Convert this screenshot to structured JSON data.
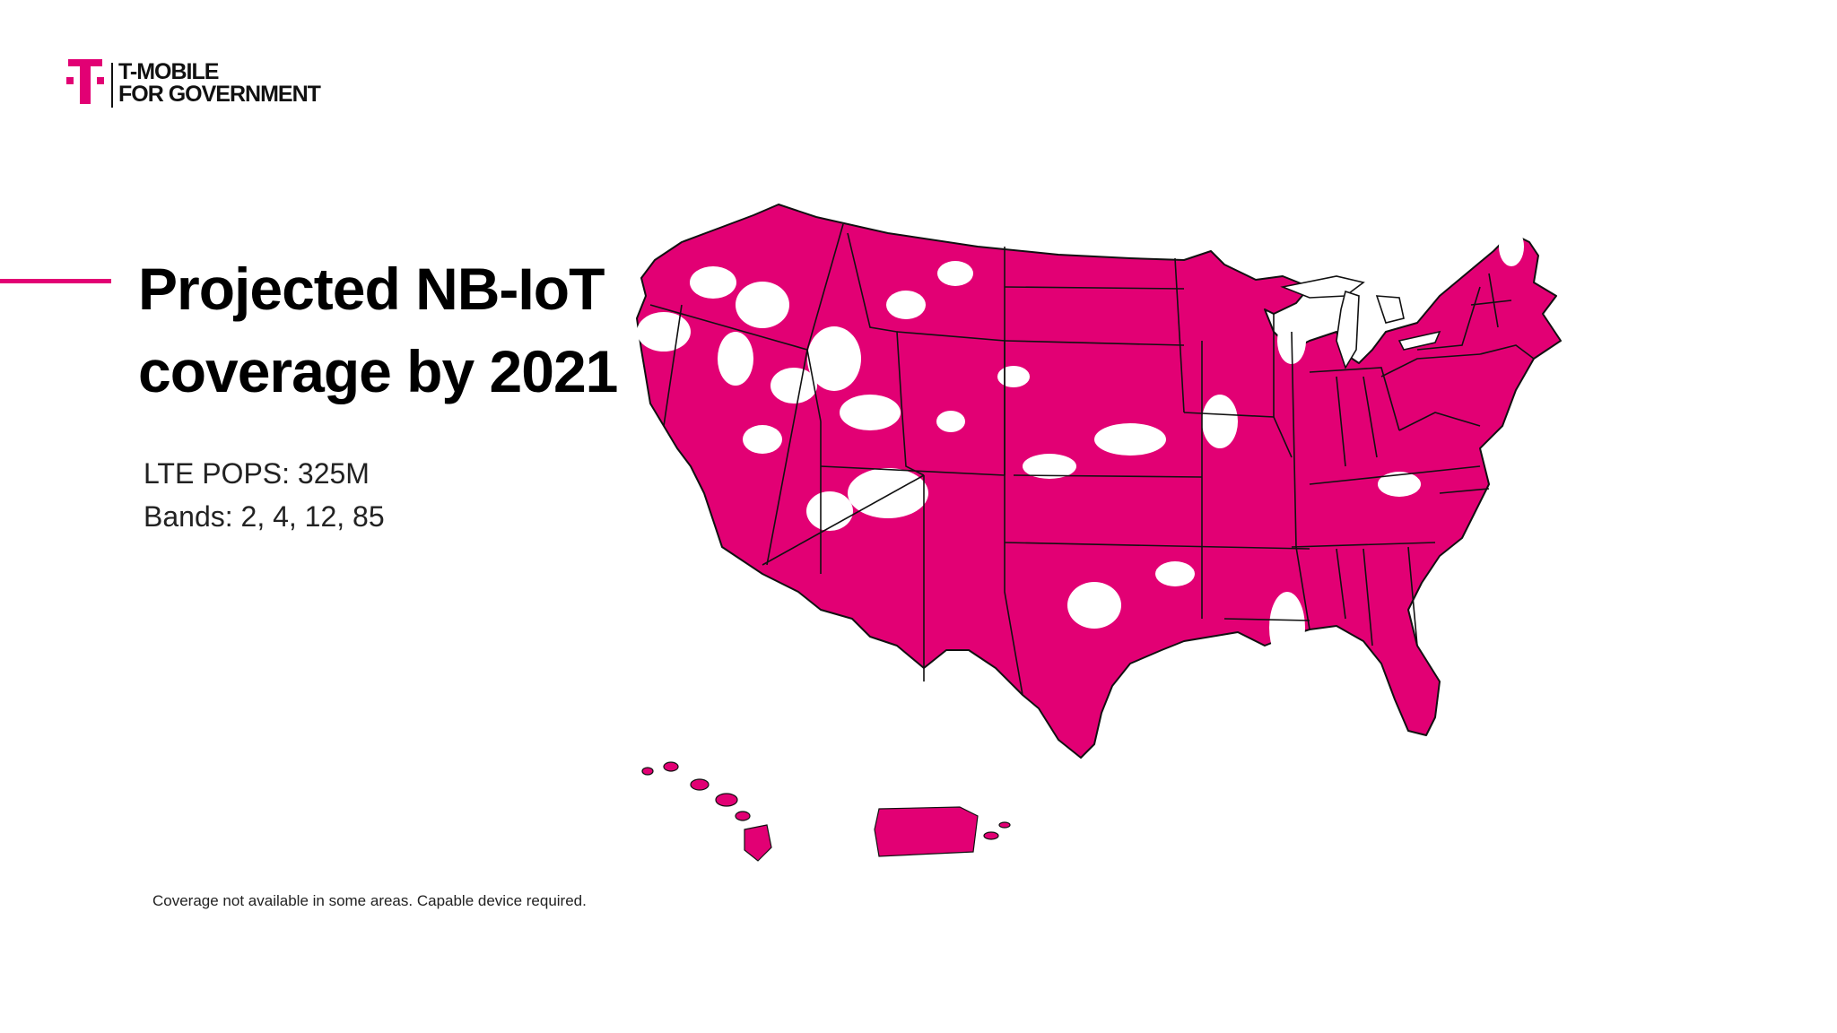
{
  "brand": {
    "line1": "T-MOBILE",
    "line2": "FOR GOVERNMENT",
    "logo_icon": "t-mobile-logo-icon",
    "color": "#e20074"
  },
  "slide": {
    "title_line1": "Projected NB-IoT",
    "title_line2": "coverage by 2021",
    "stats": {
      "lte_pops": "LTE POPS: 325M",
      "bands": "Bands: 2, 4, 12, 85"
    },
    "disclaimer": "Coverage not available in some areas.  Capable device required."
  },
  "map": {
    "regions": [
      "contiguous-us",
      "hawaii",
      "puerto-rico"
    ],
    "coverage_color": "#e20074",
    "no_coverage_color": "#ffffff",
    "border_color": "#111111"
  }
}
